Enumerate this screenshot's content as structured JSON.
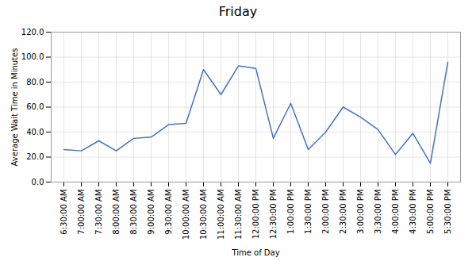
{
  "chart_data": {
    "type": "line",
    "title": "Friday",
    "xlabel": "Time of Day",
    "ylabel": "Average Wait Time in Minutes",
    "categories": [
      "6:30:00 AM",
      "7:00:00 AM",
      "7:30:00 AM",
      "8:00:00 AM",
      "8:30:00 AM",
      "9:00:00 AM",
      "9:30:00 AM",
      "10:00:00 AM",
      "10:30:00 AM",
      "11:00:00 AM",
      "11:30:00 AM",
      "12:00:00 PM",
      "12:30:00 PM",
      "1:00:00 PM",
      "1:30:00 PM",
      "2:00:00 PM",
      "2:30:00 PM",
      "3:00:00 PM",
      "3:30:00 PM",
      "4:00:00 PM",
      "4:30:00 PM",
      "5:00:00 PM",
      "5:30:00 PM"
    ],
    "values": [
      26,
      25,
      33,
      25,
      35,
      36,
      46,
      47,
      90,
      70,
      93,
      91,
      35,
      63,
      26,
      40,
      60,
      52,
      42,
      22,
      39,
      15,
      96
    ],
    "color": "#4472c4",
    "ylim": [
      0,
      120
    ],
    "yticks": [
      {
        "value": 0,
        "label": "0.0"
      },
      {
        "value": 20,
        "label": "20.0"
      },
      {
        "value": 40,
        "label": "40.0"
      },
      {
        "value": 60,
        "label": "60.0"
      },
      {
        "value": 80,
        "label": "80.0"
      },
      {
        "value": 100,
        "label": "100.0"
      },
      {
        "value": 120,
        "label": "120.0"
      }
    ],
    "grid": true
  }
}
